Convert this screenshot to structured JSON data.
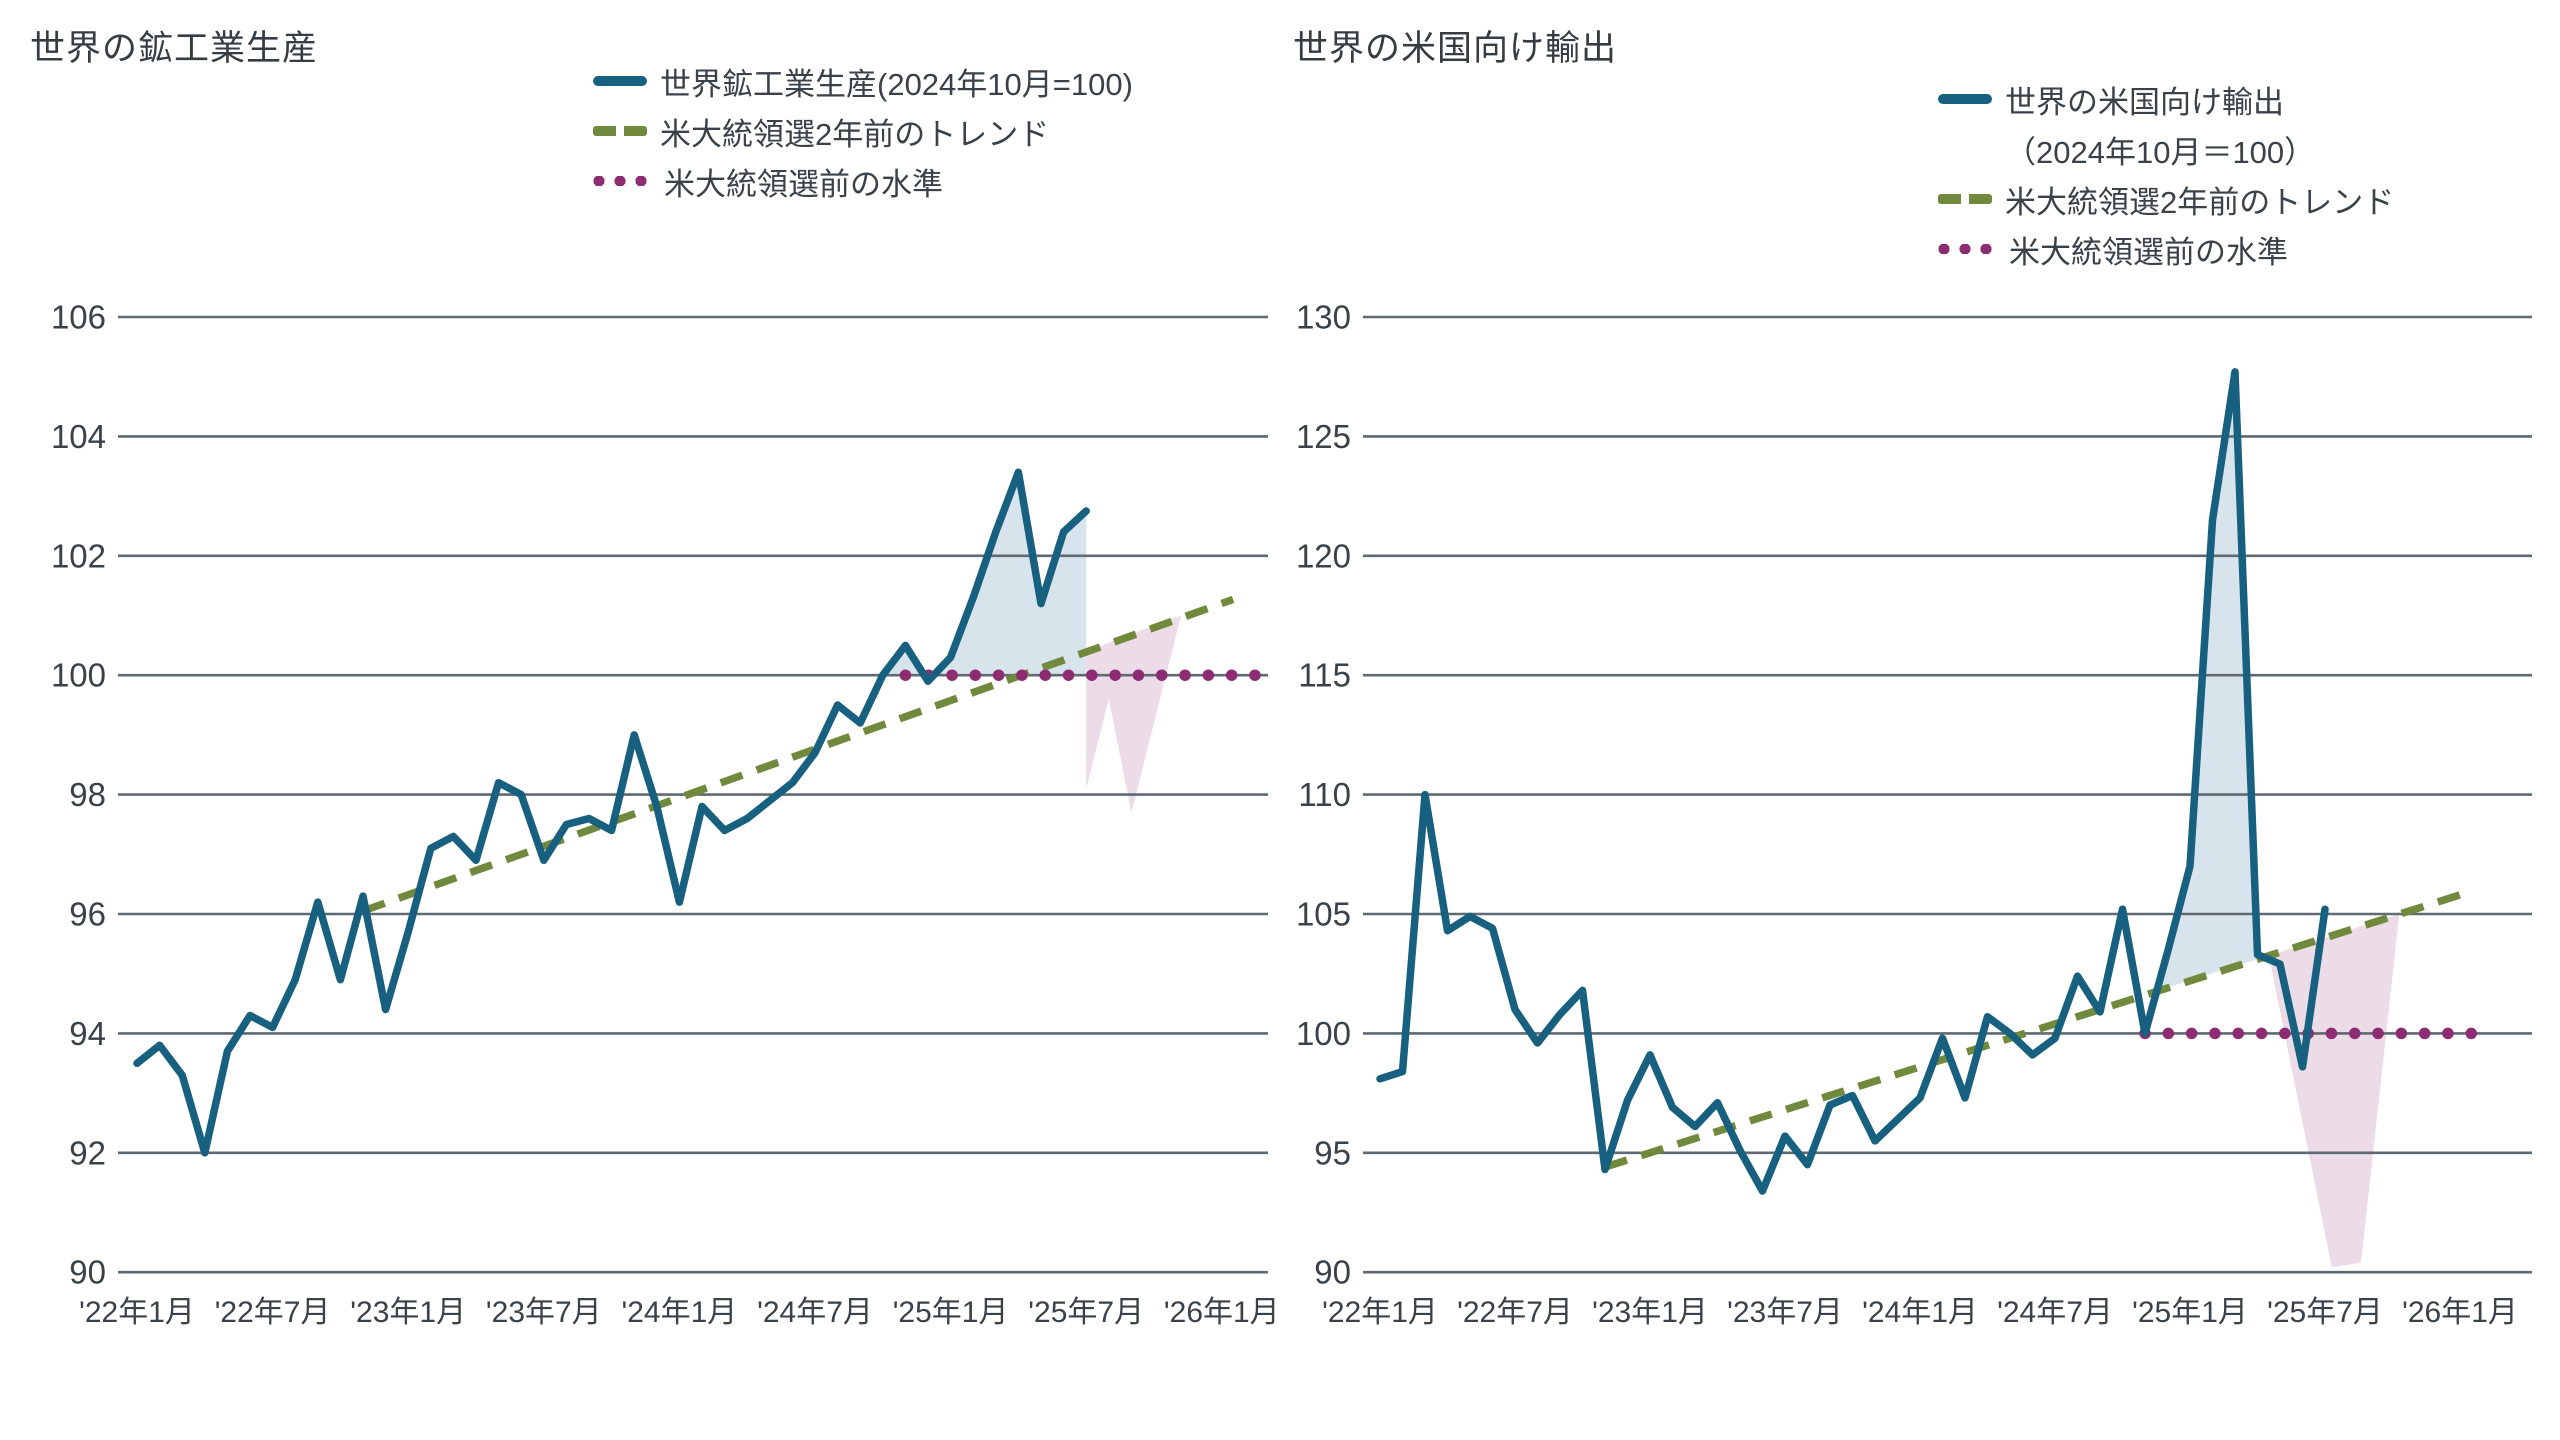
{
  "colors": {
    "series_line": "#18607F",
    "trend_line": "#71893C",
    "pre_election_dots": "#8E2C73",
    "fill_front_loading": "#D8E4EB",
    "fill_payback": "#EBDCE8",
    "gridline": "#5F6A72",
    "text": "#3A4148",
    "background": "#FFFFFF"
  },
  "chart_data": [
    {
      "type": "line",
      "title": "世界の鉱工業生産",
      "legend": [
        {
          "label": "世界鉱工業生産(2024年10月=100)",
          "style": "solid",
          "color": "#18607F"
        },
        {
          "label": "米大統領選2年前のトレンド",
          "style": "dashed",
          "color": "#71893C"
        },
        {
          "label": "米大統領選前の水準",
          "style": "dotted",
          "color": "#8E2C73"
        }
      ],
      "ylim": [
        90,
        106
      ],
      "yticks": [
        106,
        104,
        102,
        100,
        98,
        96,
        94,
        92,
        90
      ],
      "x_tick_labels": [
        "'22年1月",
        "'22年7月",
        "'23年1月",
        "'23年7月",
        "'24年1月",
        "'24年7月",
        "'25年1月",
        "'25年7月",
        "'26年1月"
      ],
      "series_start_month": "2022-01",
      "series_end_month": "2025-07",
      "series_values": [
        93.5,
        93.8,
        93.3,
        92.0,
        93.7,
        94.3,
        94.1,
        94.9,
        96.2,
        94.9,
        96.3,
        94.4,
        95.7,
        97.1,
        97.3,
        96.9,
        98.2,
        98.0,
        96.9,
        97.5,
        97.6,
        97.4,
        99.0,
        97.8,
        96.2,
        97.8,
        97.4,
        97.6,
        97.9,
        98.2,
        98.7,
        99.5,
        99.2,
        100.0,
        100.5,
        99.9,
        100.3,
        101.3,
        102.4,
        103.4,
        101.2,
        102.4,
        102.75
      ],
      "trend_points": [
        [
          10,
          96.05
        ],
        [
          48.5,
          101.27
        ]
      ],
      "pre_election_level": 100,
      "level_points": [
        [
          34,
          100
        ],
        [
          49.6,
          100
        ]
      ],
      "fills": [
        {
          "name": "actual-above-pre-election-level",
          "color": "#D8E4EB",
          "points": [
            [
              33,
              100
            ],
            [
              34,
              100.5
            ],
            [
              35,
              99.9
            ],
            [
              36,
              100.3
            ],
            [
              37,
              101.3
            ],
            [
              38,
              102.4
            ],
            [
              39,
              103.4
            ],
            [
              40,
              101.2
            ],
            [
              41,
              102.4
            ],
            [
              42,
              102.75
            ],
            [
              42,
              100
            ],
            [
              33,
              100
            ]
          ]
        },
        {
          "name": "projected-shortfall-below-trend",
          "color": "#EBDCE8",
          "points": [
            [
              42,
              100.4
            ],
            [
              42,
              98.1
            ],
            [
              43,
              99.6
            ],
            [
              44,
              97.7
            ],
            [
              46.2,
              101.0
            ]
          ]
        }
      ]
    },
    {
      "type": "line",
      "title": "世界の米国向け輸出",
      "legend": [
        {
          "label": "世界の米国向け輸出",
          "label_line2": "（2024年10月＝100）",
          "style": "solid",
          "color": "#18607F"
        },
        {
          "label": "米大統領選2年前のトレンド",
          "style": "dashed",
          "color": "#71893C"
        },
        {
          "label": "米大統領選前の水準",
          "style": "dotted",
          "color": "#8E2C73"
        }
      ],
      "ylim": [
        90,
        130
      ],
      "yticks": [
        130,
        125,
        120,
        115,
        110,
        105,
        100,
        95,
        90
      ],
      "x_tick_labels": [
        "'22年1月",
        "'22年7月",
        "'23年1月",
        "'23年7月",
        "'24年1月",
        "'24年7月",
        "'25年1月",
        "'25年7月",
        "'26年1月"
      ],
      "series_start_month": "2022-01",
      "series_end_month": "2025-07",
      "series_values": [
        98.1,
        98.4,
        110.0,
        104.3,
        104.9,
        104.4,
        101.0,
        99.6,
        100.8,
        101.8,
        94.3,
        97.2,
        99.1,
        96.9,
        96.1,
        97.1,
        95.1,
        93.4,
        95.7,
        94.5,
        97.0,
        97.4,
        95.5,
        96.4,
        97.3,
        99.8,
        97.3,
        100.7,
        100.0,
        99.1,
        99.8,
        102.4,
        100.9,
        105.2,
        100.0,
        103.4,
        107.0,
        121.5,
        127.7,
        103.3,
        102.9,
        98.6,
        105.2
      ],
      "trend_points": [
        [
          10,
          94.4
        ],
        [
          48.5,
          105.95
        ]
      ],
      "pre_election_level": 100,
      "level_points": [
        [
          34,
          100
        ],
        [
          49.5,
          100
        ]
      ],
      "fills": [
        {
          "name": "front-loading-above-trend",
          "color": "#D8E4EB",
          "points": [
            [
              34.6,
              101.8
            ],
            [
              35,
              103.4
            ],
            [
              36,
              107.0
            ],
            [
              37,
              121.5
            ],
            [
              38,
              127.7
            ],
            [
              38.97,
              103.1
            ]
          ]
        },
        {
          "name": "payback-below-trend",
          "color": "#EBDCE8",
          "points": [
            [
              39.5,
              103.25
            ],
            [
              42.3,
              90.2
            ],
            [
              43.6,
              90.4
            ],
            [
              45.3,
              105.0
            ]
          ]
        }
      ]
    }
  ]
}
